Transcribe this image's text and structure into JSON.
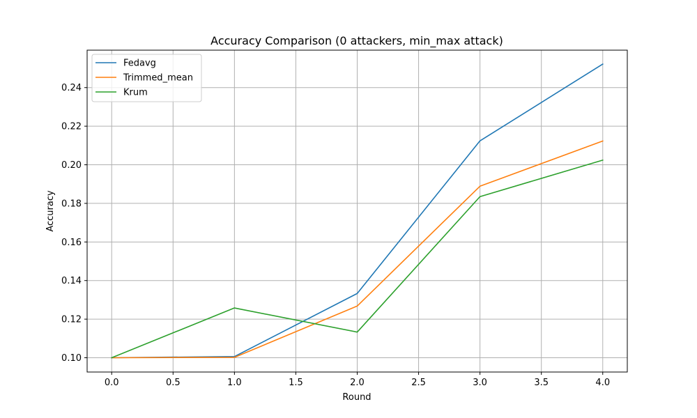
{
  "chart_data": {
    "type": "line",
    "title": "Accuracy Comparison (0 attackers, min_max attack)",
    "xlabel": "Round",
    "ylabel": "Accuracy",
    "x": [
      0,
      1,
      2,
      3,
      4
    ],
    "xlim": [
      -0.2,
      4.2
    ],
    "ylim": [
      0.0926,
      0.2594
    ],
    "xticks": [
      0.0,
      0.5,
      1.0,
      1.5,
      2.0,
      2.5,
      3.0,
      3.5,
      4.0
    ],
    "xtick_labels": [
      "0.0",
      "0.5",
      "1.0",
      "1.5",
      "2.0",
      "2.5",
      "3.0",
      "3.5",
      "4.0"
    ],
    "yticks": [
      0.1,
      0.12,
      0.14,
      0.16,
      0.18,
      0.2,
      0.22,
      0.24
    ],
    "ytick_labels": [
      "0.10",
      "0.12",
      "0.14",
      "0.16",
      "0.18",
      "0.20",
      "0.22",
      "0.24"
    ],
    "grid": true,
    "legend_position": "upper-left",
    "series": [
      {
        "name": "Fedavg",
        "color": "#1f77b4",
        "values": [
          0.1,
          0.1006,
          0.1333,
          0.2124,
          0.2522
        ]
      },
      {
        "name": "Trimmed_mean",
        "color": "#ff7f0e",
        "values": [
          0.1,
          0.1002,
          0.1268,
          0.1889,
          0.2123
        ]
      },
      {
        "name": "Krum",
        "color": "#2ca02c",
        "values": [
          0.1,
          0.1258,
          0.1133,
          0.1835,
          0.2024
        ]
      }
    ]
  }
}
